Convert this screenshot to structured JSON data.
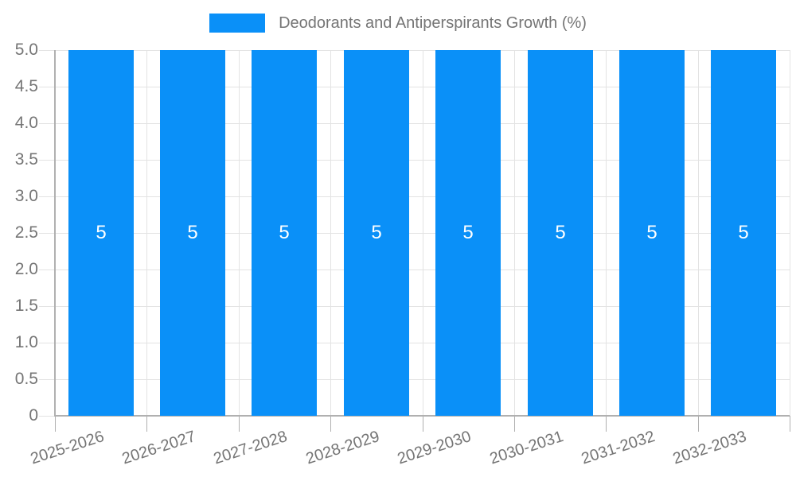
{
  "chart_data": {
    "type": "bar",
    "title": "Deodorants and Antiperspirants Growth (%)",
    "categories": [
      "2025-2026",
      "2026-2027",
      "2027-2028",
      "2028-2029",
      "2029-2030",
      "2030-2031",
      "2031-2032",
      "2032-2033"
    ],
    "values": [
      5,
      5,
      5,
      5,
      5,
      5,
      5,
      5
    ],
    "bar_labels": [
      "5",
      "5",
      "5",
      "5",
      "5",
      "5",
      "5",
      "5"
    ],
    "xlabel": "",
    "ylabel": "",
    "ylim": [
      0,
      5
    ],
    "ytick_step": 0.5,
    "ytick_labels_top_to_bottom": [
      "5.0",
      "4.5",
      "4.0",
      "3.5",
      "3.0",
      "2.5",
      "2.0",
      "1.5",
      "1.0",
      "0.5",
      "0"
    ],
    "grid": true,
    "legend_position": "top-center",
    "colors": {
      "bar": "#0a90f8",
      "bar_label": "#ffffff",
      "grid": "#e3e3e3",
      "axis": "#b0b0b0",
      "text": "#757575",
      "background": "#ffffff"
    }
  }
}
